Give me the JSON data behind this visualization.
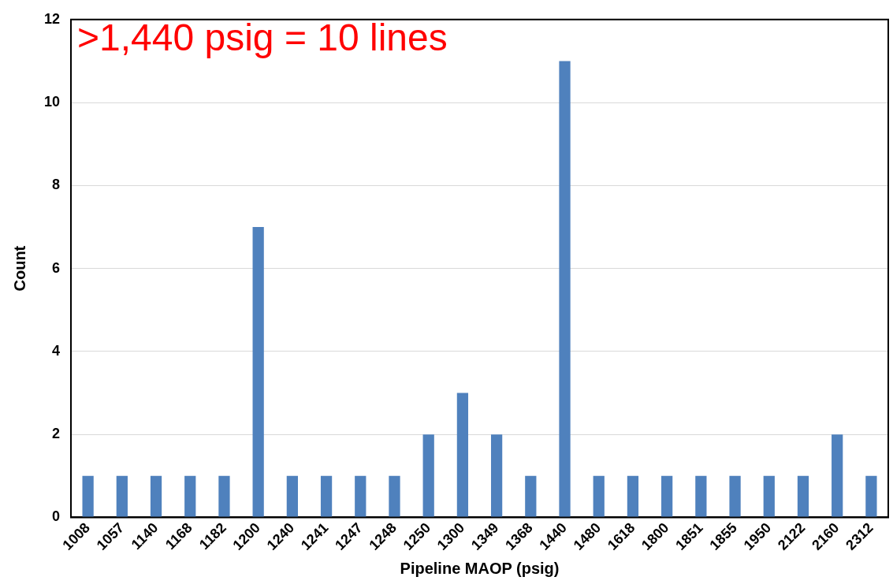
{
  "chart_data": {
    "type": "bar",
    "xlabel": "Pipeline MAOP (psig)",
    "ylabel": "Count",
    "categories": [
      "1008",
      "1057",
      "1140",
      "1168",
      "1182",
      "1200",
      "1240",
      "1241",
      "1247",
      "1248",
      "1250",
      "1300",
      "1349",
      "1368",
      "1440",
      "1480",
      "1618",
      "1800",
      "1851",
      "1855",
      "1950",
      "2122",
      "2160",
      "2312"
    ],
    "values": [
      1,
      1,
      1,
      1,
      1,
      7,
      1,
      1,
      1,
      1,
      2,
      3,
      2,
      1,
      11,
      1,
      1,
      1,
      1,
      1,
      1,
      1,
      2,
      1
    ],
    "color": "#4f81bd",
    "ylim": [
      0,
      12
    ],
    "yticks": [
      0,
      2,
      4,
      6,
      8,
      10,
      12
    ],
    "grid": "y",
    "legend": false,
    "annotations": [
      ">1,440 psig = 10 lines"
    ]
  }
}
